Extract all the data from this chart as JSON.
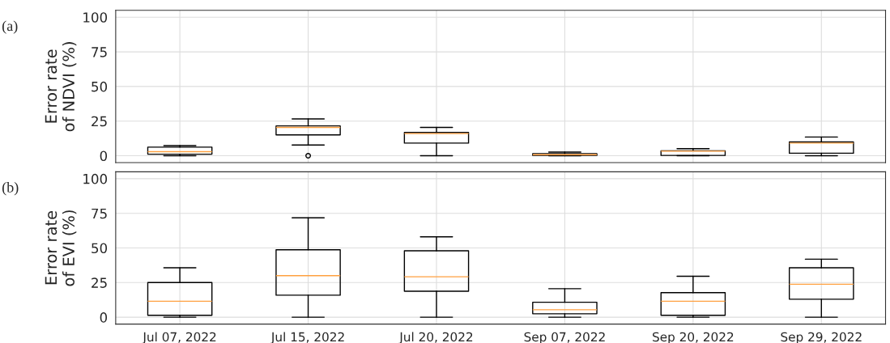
{
  "chart_data": [
    {
      "type": "box",
      "ylabel": "Error rate\nof NDVI (%)",
      "annotations": [
        "(a)"
      ],
      "categories": [
        null,
        null,
        null,
        null,
        null,
        null
      ],
      "ylim": [
        -5,
        105
      ],
      "yticks": [
        0,
        25,
        50,
        75,
        100
      ],
      "grid": true,
      "tick_labels": "y",
      "color": "#000000",
      "boxes": [
        {
          "low": 0,
          "q1": 1.1,
          "median": 2.9,
          "q3": 6.2,
          "high": 7.3
        },
        {
          "low": 7.7,
          "q1": 15,
          "median": 20.4,
          "q3": 21.5,
          "high": 26.6,
          "outliers": [
            0
          ]
        },
        {
          "low": 0,
          "q1": 9.1,
          "median": 16,
          "q3": 16.8,
          "high": 20.4
        },
        {
          "low": 0,
          "q1": 0.2,
          "median": 0.7,
          "q3": 1.5,
          "high": 2.6
        },
        {
          "low": 0,
          "q1": 0.2,
          "median": 3.3,
          "q3": 3.6,
          "high": 5.1
        },
        {
          "low": 0,
          "q1": 1.8,
          "median": 9.1,
          "q3": 9.9,
          "high": 13.5
        }
      ]
    },
    {
      "type": "box",
      "ylabel": "Error rate\nof EVI (%)",
      "annotations": [
        "(b)"
      ],
      "categories": [
        "Jul 07, 2022",
        "Jul 15, 2022",
        "Jul 20, 2022",
        "Sep 07, 2022",
        "Sep 20, 2022",
        "Sep 29, 2022"
      ],
      "ylim": [
        -5,
        105
      ],
      "yticks": [
        0,
        25,
        50,
        75,
        100
      ],
      "grid": true,
      "color": "#000000",
      "boxes": [
        {
          "low": 0,
          "q1": 1.4,
          "median": 11.5,
          "q3": 25,
          "high": 35.7
        },
        {
          "low": 0,
          "q1": 15.9,
          "median": 30,
          "q3": 48.7,
          "high": 71.8
        },
        {
          "low": 0,
          "q1": 18.8,
          "median": 29.2,
          "q3": 48,
          "high": 58
        },
        {
          "low": 0,
          "q1": 2.5,
          "median": 5.4,
          "q3": 10.8,
          "high": 20.6
        },
        {
          "low": 0,
          "q1": 1.4,
          "median": 11.5,
          "q3": 17.7,
          "high": 29.6
        },
        {
          "low": 0,
          "q1": 13,
          "median": 23.8,
          "q3": 35.7,
          "high": 41.9
        }
      ]
    }
  ]
}
